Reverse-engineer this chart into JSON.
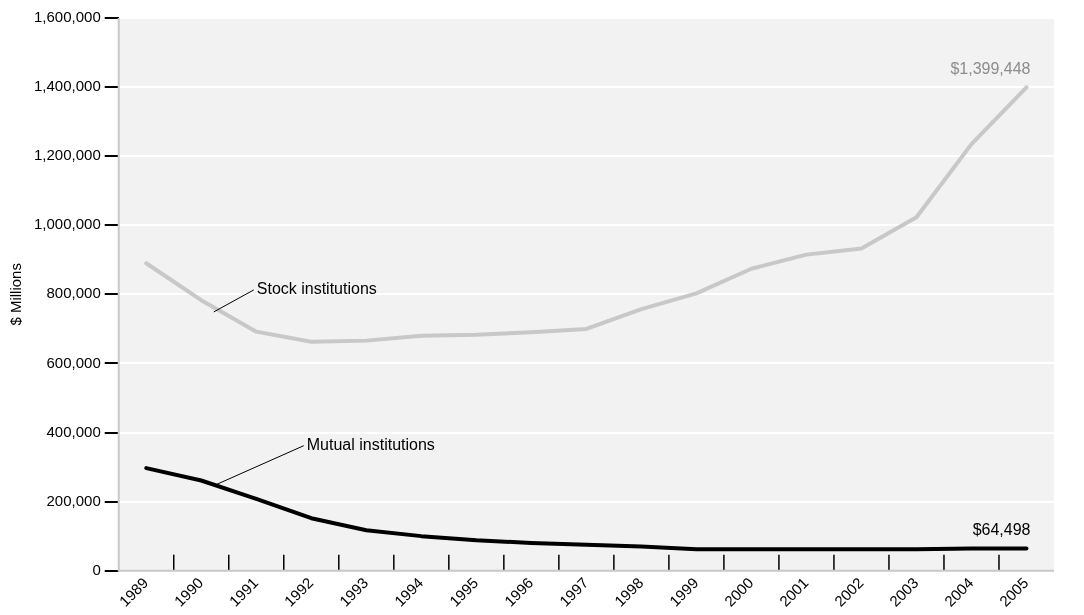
{
  "chart_data": {
    "type": "line",
    "ylabel": "$ Millions",
    "categories": [
      "1989",
      "1990",
      "1991",
      "1992",
      "1993",
      "1994",
      "1995",
      "1996",
      "1997",
      "1998",
      "1999",
      "2000",
      "2001",
      "2002",
      "2003",
      "2004",
      "2005"
    ],
    "series": [
      {
        "name": "Stock institutions",
        "color": "#c8c8c8",
        "values": [
          890000,
          783000,
          692000,
          663000,
          666000,
          680000,
          683000,
          690000,
          700000,
          757000,
          803000,
          874000,
          915000,
          933000,
          1023000,
          1235000,
          1399448
        ],
        "value_labels": [
          null,
          null,
          null,
          null,
          null,
          null,
          null,
          null,
          null,
          null,
          null,
          null,
          null,
          null,
          null,
          null,
          "$1,399,448"
        ]
      },
      {
        "name": "Mutual institutions",
        "color": "#000000",
        "values": [
          297000,
          261000,
          208000,
          152000,
          117000,
          100000,
          88000,
          80000,
          75000,
          70000,
          62000,
          62000,
          62000,
          62000,
          62000,
          64000,
          64498
        ],
        "value_labels": [
          null,
          null,
          null,
          null,
          null,
          null,
          null,
          null,
          null,
          null,
          null,
          null,
          null,
          null,
          null,
          null,
          "$64,498"
        ]
      }
    ],
    "ylim": [
      0,
      1600000
    ],
    "yticks": [
      0,
      {
        "value": 200000,
        "label": "200,000"
      },
      {
        "value": 400000,
        "label": "400,000"
      },
      {
        "value": 600000,
        "label": "600,000"
      },
      {
        "value": 800000,
        "label": "800,000"
      },
      {
        "value": 1000000,
        "label": "1,000,000"
      },
      {
        "value": 1200000,
        "label": "1,200,000"
      },
      {
        "value": 1400000,
        "label": "1,400,000"
      },
      {
        "value": 1600000,
        "label": "1,600,000"
      }
    ],
    "grid": "y",
    "legend": false,
    "marker": "none",
    "line_style": "solid"
  }
}
